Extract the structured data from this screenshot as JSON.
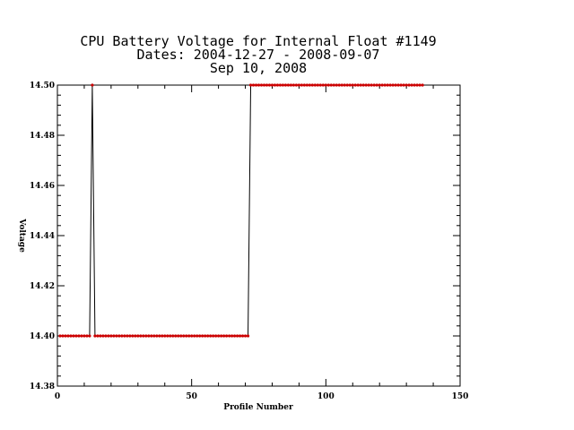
{
  "chart_data": {
    "type": "line",
    "title_lines": [
      "CPU Battery Voltage for Internal Float #1149",
      "Dates:  2004-12-27 -  2008-09-07",
      "Sep 10, 2008"
    ],
    "xlabel": "Profile Number",
    "ylabel": "Voltage",
    "xlim": [
      0,
      150
    ],
    "ylim": [
      14.38,
      14.5
    ],
    "xticks": [
      "0",
      "50",
      "100",
      "150"
    ],
    "yticks": [
      "14.38",
      "14.40",
      "14.42",
      "14.44",
      "14.46",
      "14.48",
      "14.50"
    ],
    "line_color": "#000000",
    "marker_color": "#cc0000",
    "series": [
      {
        "x": [
          1,
          2,
          3,
          4,
          5,
          6,
          7,
          8,
          9,
          10,
          11,
          12,
          13,
          14,
          15,
          16,
          17,
          18,
          19,
          20,
          21,
          22,
          23,
          24,
          25,
          26,
          27,
          28,
          29,
          30,
          31,
          32,
          33,
          34,
          35,
          36,
          37,
          38,
          39,
          40,
          41,
          42,
          43,
          44,
          45,
          46,
          47,
          48,
          49,
          50,
          51,
          52,
          53,
          54,
          55,
          56,
          57,
          58,
          59,
          60,
          61,
          62,
          63,
          64,
          65,
          66,
          67,
          68,
          69,
          70,
          71,
          72,
          73,
          74,
          75,
          76,
          77,
          78,
          79,
          80,
          81,
          82,
          83,
          84,
          85,
          86,
          87,
          88,
          89,
          90,
          91,
          92,
          93,
          94,
          95,
          96,
          97,
          98,
          99,
          100,
          101,
          102,
          103,
          104,
          105,
          106,
          107,
          108,
          109,
          110,
          111,
          112,
          113,
          114,
          115,
          116,
          117,
          118,
          119,
          120,
          121,
          122,
          123,
          124,
          125,
          126,
          127,
          128,
          129,
          130,
          131,
          132,
          133,
          134,
          135,
          136
        ],
        "y": [
          14.4,
          14.4,
          14.4,
          14.4,
          14.4,
          14.4,
          14.4,
          14.4,
          14.4,
          14.4,
          14.4,
          14.4,
          14.5,
          14.4,
          14.4,
          14.4,
          14.4,
          14.4,
          14.4,
          14.4,
          14.4,
          14.4,
          14.4,
          14.4,
          14.4,
          14.4,
          14.4,
          14.4,
          14.4,
          14.4,
          14.4,
          14.4,
          14.4,
          14.4,
          14.4,
          14.4,
          14.4,
          14.4,
          14.4,
          14.4,
          14.4,
          14.4,
          14.4,
          14.4,
          14.4,
          14.4,
          14.4,
          14.4,
          14.4,
          14.4,
          14.4,
          14.4,
          14.4,
          14.4,
          14.4,
          14.4,
          14.4,
          14.4,
          14.4,
          14.4,
          14.4,
          14.4,
          14.4,
          14.4,
          14.4,
          14.4,
          14.4,
          14.4,
          14.4,
          14.4,
          14.4,
          14.5,
          14.5,
          14.5,
          14.5,
          14.5,
          14.5,
          14.5,
          14.5,
          14.5,
          14.5,
          14.5,
          14.5,
          14.5,
          14.5,
          14.5,
          14.5,
          14.5,
          14.5,
          14.5,
          14.5,
          14.5,
          14.5,
          14.5,
          14.5,
          14.5,
          14.5,
          14.5,
          14.5,
          14.5,
          14.5,
          14.5,
          14.5,
          14.5,
          14.5,
          14.5,
          14.5,
          14.5,
          14.5,
          14.5,
          14.5,
          14.5,
          14.5,
          14.5,
          14.5,
          14.5,
          14.5,
          14.5,
          14.5,
          14.5,
          14.5,
          14.5,
          14.5,
          14.5,
          14.5,
          14.5,
          14.5,
          14.5,
          14.5,
          14.5,
          14.5,
          14.5,
          14.5,
          14.5,
          14.5,
          14.5
        ]
      }
    ]
  }
}
